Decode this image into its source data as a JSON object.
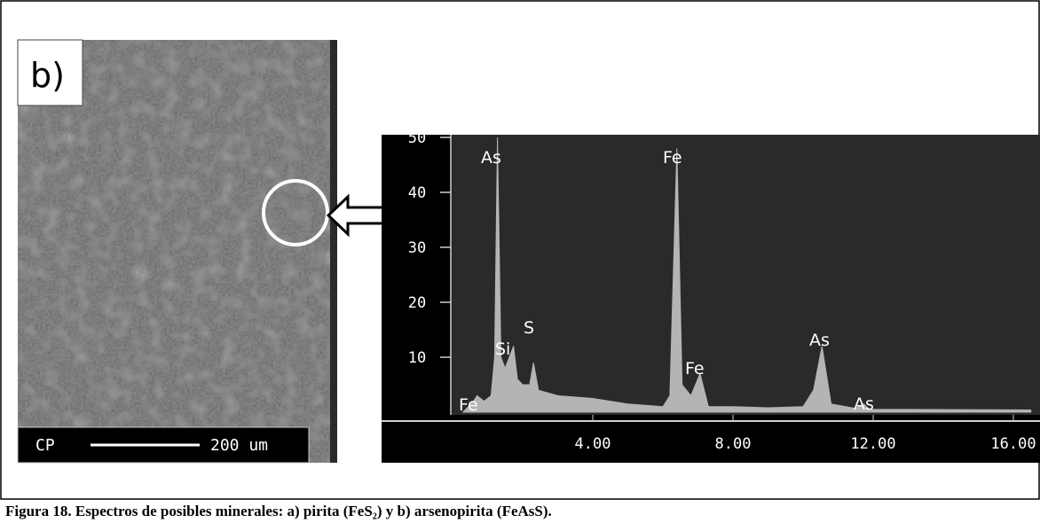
{
  "panel_label": "b)",
  "scale_bar": {
    "left": "CP",
    "right": "200 um"
  },
  "chart_data": {
    "type": "area",
    "color": "#b4b4b4",
    "x": [
      0.3,
      0.6,
      0.7,
      0.9,
      1.1,
      1.2,
      1.28,
      1.38,
      1.5,
      1.74,
      1.85,
      2.0,
      2.2,
      2.31,
      2.45,
      3.0,
      4.0,
      5.0,
      6.0,
      6.2,
      6.4,
      6.55,
      6.8,
      7.06,
      7.3,
      8.0,
      9.0,
      10.0,
      10.3,
      10.54,
      10.8,
      11.5,
      11.73,
      11.9,
      13.0,
      16.5
    ],
    "values": [
      0,
      2,
      3,
      2,
      3,
      10,
      50,
      10,
      8,
      12,
      6,
      5,
      5,
      9,
      4,
      3,
      2.5,
      1.5,
      1,
      3,
      48,
      5,
      3,
      7,
      1,
      1,
      0.8,
      1,
      4,
      12,
      1.5,
      0.7,
      1.5,
      0.5,
      0.5,
      0.4
    ],
    "xlim": [
      0,
      16.76
    ],
    "ylim": [
      0,
      50
    ],
    "yticks": [
      10,
      20,
      30,
      40,
      50
    ],
    "xticks": [
      {
        "value": 4,
        "label": "4.00"
      },
      {
        "value": 8,
        "label": "8.00"
      },
      {
        "value": 12,
        "label": "12.00"
      },
      {
        "value": 16,
        "label": "16.00"
      }
    ],
    "annotations": [
      "As",
      "Si",
      "S",
      "Fe",
      "Fe",
      "As",
      "As",
      "Fe"
    ]
  },
  "caption": "Figura 18. Espectros de posibles minerales: a) pirita (FeS₂) y b) arsenopirita (FeAsS)."
}
